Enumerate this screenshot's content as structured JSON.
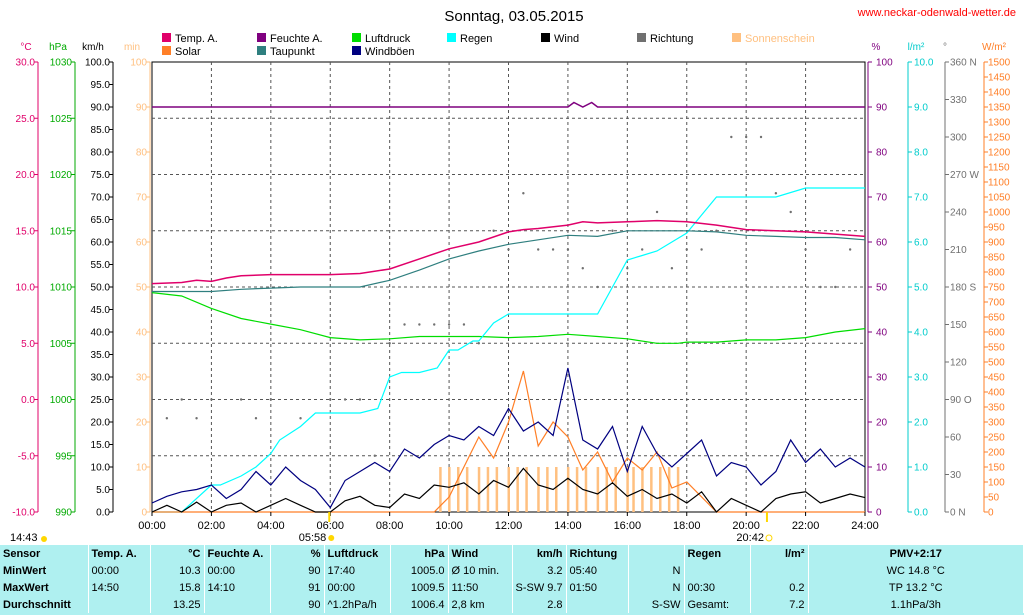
{
  "title": "Sonntag, 03.05.2015",
  "website": "www.neckar-odenwald-wetter.de",
  "legend": [
    {
      "label": "Temp. A.",
      "color": "#e0006a"
    },
    {
      "label": "Solar",
      "color": "#ff7f27"
    },
    {
      "label": "Feuchte A.",
      "color": "#7f007f"
    },
    {
      "label": "Taupunkt",
      "color": "#2f7f7f"
    },
    {
      "label": "Luftdruck",
      "color": "#00dd00"
    },
    {
      "label": "Windböen",
      "color": "#000080"
    },
    {
      "label": "Regen",
      "color": "#00ffff"
    },
    {
      "label": "Wind",
      "color": "#000000"
    },
    {
      "label": "Richtung",
      "color": "#707070"
    },
    {
      "label": "Sonnenschein",
      "color": "#ffc080"
    }
  ],
  "axes": {
    "temp": {
      "unit": "°C",
      "ticks": [
        "30.0",
        "25.0",
        "20.0",
        "15.0",
        "10.0",
        "5.0",
        "0.0",
        "-5.0",
        "-10.0"
      ],
      "color": "#e0006a"
    },
    "hpa": {
      "unit": "hPa",
      "ticks": [
        "1030",
        "1025",
        "1020",
        "1015",
        "1010",
        "1005",
        "1000",
        "995",
        "990"
      ],
      "color": "#00aa00"
    },
    "kmh": {
      "unit": "km/h",
      "ticks": [
        "100.0",
        "95.0",
        "90.0",
        "85.0",
        "80.0",
        "75.0",
        "70.0",
        "65.0",
        "60.0",
        "55.0",
        "50.0",
        "45.0",
        "40.0",
        "35.0",
        "30.0",
        "25.0",
        "20.0",
        "15.0",
        "10.0",
        "5.0",
        "0.0"
      ],
      "color": "#000000"
    },
    "min": {
      "unit": "min",
      "ticks": [
        "100",
        "90",
        "80",
        "70",
        "60",
        "50",
        "40",
        "30",
        "20",
        "10",
        "0"
      ],
      "color": "#ffc080"
    },
    "pct": {
      "unit": "%",
      "ticks": [
        "100",
        "90",
        "80",
        "70",
        "60",
        "50",
        "40",
        "30",
        "20",
        "10",
        "0"
      ],
      "color": "#7f007f"
    },
    "rain": {
      "unit": "l/m²",
      "ticks": [
        "10.0",
        "9.0",
        "8.0",
        "7.0",
        "6.0",
        "5.0",
        "4.0",
        "3.0",
        "2.0",
        "1.0",
        "0.0"
      ],
      "color": "#00cccc"
    },
    "dir": {
      "unit": "°",
      "ticks": [
        "360 N",
        "330",
        "300",
        "270 W",
        "240",
        "210",
        "180 S",
        "150",
        "120",
        "90 O",
        "60",
        "30",
        "0 N"
      ],
      "color": "#707070"
    },
    "solar": {
      "unit": "W/m²",
      "ticks": [
        "1500",
        "1450",
        "1400",
        "1350",
        "1300",
        "1250",
        "1200",
        "1150",
        "1100",
        "1050",
        "1000",
        "950",
        "900",
        "850",
        "800",
        "750",
        "700",
        "650",
        "600",
        "550",
        "500",
        "450",
        "400",
        "350",
        "300",
        "250",
        "200",
        "150",
        "100",
        "50",
        "0"
      ],
      "color": "#ff7f27"
    }
  },
  "x_ticks": [
    "00:00",
    "02:00",
    "04:00",
    "06:00",
    "08:00",
    "10:00",
    "12:00",
    "14:00",
    "16:00",
    "18:00",
    "20:00",
    "22:00",
    "24:00"
  ],
  "markers": {
    "left_time": "14:43",
    "sunrise": "05:58",
    "sunset": "20:42"
  },
  "chart_data": {
    "type": "line",
    "x_unit": "hours",
    "xlim": [
      0,
      24
    ],
    "series": [
      {
        "name": "Temp. A.",
        "unit": "°C",
        "x": [
          0,
          1,
          1.5,
          2,
          2.5,
          3,
          4,
          5,
          6,
          7,
          8,
          9,
          10,
          11,
          12,
          12.5,
          13,
          14,
          14.5,
          15,
          16,
          17,
          18,
          19,
          20,
          21,
          22,
          23,
          24
        ],
        "values": [
          10.3,
          10.4,
          10.6,
          10.5,
          10.8,
          11.0,
          11.1,
          11.1,
          11.1,
          11.2,
          11.6,
          12.5,
          13.4,
          14.0,
          14.9,
          15.1,
          15.2,
          15.5,
          15.8,
          15.7,
          15.8,
          15.9,
          15.8,
          15.5,
          15.1,
          15.0,
          14.9,
          14.7,
          14.5
        ]
      },
      {
        "name": "Feuchte A.",
        "unit": "%",
        "x": [
          0,
          13,
          14,
          14.2,
          14.5,
          14.8,
          15,
          15.3,
          16,
          20,
          24
        ],
        "values": [
          90,
          90,
          90,
          91,
          90,
          91,
          90,
          90,
          90,
          90,
          90
        ]
      },
      {
        "name": "Luftdruck",
        "unit": "hPa",
        "x": [
          0,
          1,
          2,
          3,
          4,
          5,
          6,
          7,
          8,
          9,
          10,
          11,
          12,
          13,
          14,
          15,
          16,
          17,
          17.7,
          18,
          19,
          20,
          21,
          22,
          23,
          24
        ],
        "values": [
          1009.5,
          1009.2,
          1008.1,
          1007.2,
          1006.7,
          1006.2,
          1005.5,
          1005.3,
          1005.4,
          1005.6,
          1005.6,
          1005.6,
          1005.5,
          1005.6,
          1005.8,
          1005.6,
          1005.4,
          1005.0,
          1005.0,
          1005.1,
          1005.1,
          1005.3,
          1005.3,
          1005.5,
          1006.0,
          1006.3
        ]
      },
      {
        "name": "Taupunkt",
        "unit": "°C",
        "x": [
          0,
          1,
          2,
          3,
          4,
          5,
          6,
          7,
          8,
          9,
          10,
          11,
          12,
          13,
          14,
          15,
          16,
          17,
          18,
          19,
          20,
          21,
          22,
          23,
          24
        ],
        "values": [
          9.6,
          9.6,
          9.6,
          9.8,
          9.9,
          10.0,
          10.0,
          10.0,
          10.6,
          11.5,
          12.5,
          13.2,
          13.8,
          14.2,
          14.6,
          14.5,
          15.0,
          15.0,
          15.0,
          14.9,
          14.6,
          14.5,
          14.4,
          14.4,
          14.2
        ]
      },
      {
        "name": "Regen",
        "unit": "l/m²",
        "x": [
          0,
          1,
          2,
          2.3,
          3,
          3.5,
          4,
          4.3,
          5,
          5.5,
          6,
          6.5,
          7,
          7.6,
          8,
          8.4,
          9,
          9.6,
          10,
          10.3,
          10.8,
          11,
          11.5,
          12,
          13,
          14,
          15,
          15.5,
          16,
          16.5,
          17,
          17.5,
          18,
          18.5,
          19,
          19.5,
          20,
          21,
          22,
          23,
          24
        ],
        "values": [
          0.0,
          0.0,
          0.6,
          0.6,
          0.8,
          1.0,
          1.3,
          1.6,
          1.9,
          2.2,
          2.2,
          2.2,
          2.2,
          2.3,
          3.0,
          3.1,
          3.1,
          3.2,
          3.6,
          3.6,
          3.8,
          3.8,
          4.2,
          4.4,
          4.4,
          4.4,
          4.4,
          5.0,
          5.6,
          5.7,
          5.8,
          6.0,
          6.2,
          6.6,
          7.0,
          7.0,
          7.0,
          7.0,
          7.2,
          7.2,
          7.2
        ]
      },
      {
        "name": "Wind",
        "unit": "km/h",
        "x": [
          0,
          0.5,
          1,
          1.5,
          2,
          2.5,
          3,
          3.5,
          4,
          4.5,
          5,
          5.5,
          6,
          6.5,
          7,
          7.5,
          8,
          8.5,
          9,
          9.5,
          10,
          10.5,
          11,
          11.5,
          12,
          12.5,
          13,
          13.5,
          14,
          14.5,
          15,
          15.5,
          16,
          16.5,
          17,
          17.5,
          18,
          18.5,
          19,
          19.5,
          20,
          20.5,
          21,
          21.5,
          22,
          22.5,
          23,
          23.5,
          24
        ],
        "values": [
          0,
          1.5,
          0,
          2.2,
          0,
          1.5,
          2,
          0,
          1.5,
          3,
          1.5,
          0,
          0,
          2.5,
          3.5,
          1.5,
          1,
          4,
          3,
          6,
          5.5,
          6.5,
          4,
          7,
          5.5,
          9.7,
          6,
          5,
          7.5,
          5,
          4,
          6.5,
          3.5,
          5,
          3,
          4,
          2,
          4.5,
          0,
          3,
          1.5,
          0,
          3,
          4,
          4.5,
          2,
          3,
          4,
          3.2
        ]
      },
      {
        "name": "Windböen",
        "unit": "km/h",
        "x": [
          0,
          0.5,
          1,
          1.5,
          2,
          2.5,
          3,
          3.5,
          4,
          4.5,
          5,
          5.5,
          6,
          6.5,
          7,
          7.5,
          8,
          8.5,
          9,
          9.5,
          10,
          10.5,
          11,
          11.5,
          12,
          12.5,
          13,
          13.5,
          14,
          14.5,
          15,
          15.5,
          16,
          16.5,
          17,
          17.5,
          18,
          18.5,
          19,
          19.5,
          20,
          20.5,
          21,
          21.5,
          22,
          22.5,
          23,
          23.5,
          24
        ],
        "values": [
          2,
          3.5,
          4.5,
          5,
          6,
          3,
          5,
          9,
          6,
          10,
          7,
          5,
          1,
          7,
          9,
          11,
          9,
          14,
          12,
          15,
          17,
          16,
          19,
          17,
          23,
          18,
          20,
          17,
          32,
          16,
          14,
          19,
          9,
          19,
          13,
          10,
          13,
          16,
          8,
          11,
          10,
          6,
          9,
          16,
          11,
          14,
          10,
          12,
          10
        ]
      },
      {
        "name": "Solar",
        "unit": "W/m²",
        "x": [
          0,
          9.5,
          10,
          10.5,
          11,
          11.5,
          12,
          12.5,
          13,
          13.5,
          14,
          14.5,
          15,
          15.5,
          16,
          16.5,
          17,
          17.5,
          18,
          19,
          24
        ],
        "values": [
          0,
          0,
          50,
          150,
          250,
          180,
          300,
          470,
          220,
          300,
          250,
          140,
          200,
          100,
          180,
          140,
          200,
          80,
          100,
          0,
          0
        ]
      },
      {
        "name": "Sonnenschein",
        "unit": "min",
        "x": [
          9.7,
          10,
          10.3,
          10.6,
          11,
          11.3,
          11.6,
          12,
          12.3,
          12.6,
          13,
          13.3,
          13.6,
          14,
          14.3,
          14.6,
          15,
          15.3,
          15.6,
          16,
          16.2,
          16.5,
          16.8,
          17.1,
          17.4,
          17.7
        ],
        "values": [
          10,
          10,
          10,
          10,
          10,
          10,
          10,
          10,
          10,
          10,
          10,
          10,
          10,
          10,
          10,
          10,
          10,
          10,
          10,
          10,
          10,
          10,
          10,
          10,
          10,
          10
        ]
      },
      {
        "name": "Richtung",
        "unit": "°",
        "x": [
          0.5,
          1,
          1.5,
          2,
          3,
          3.5,
          4,
          5,
          6,
          6.5,
          7,
          7.5,
          8,
          8.5,
          9,
          9.5,
          10,
          10.5,
          11,
          11.5,
          12,
          12.5,
          13,
          13.5,
          14,
          14.5,
          15,
          15.5,
          16,
          16.5,
          17,
          17.5,
          18,
          18.5,
          19,
          19.5,
          20,
          20.5,
          21,
          21.5,
          22,
          22.5,
          23,
          23.5
        ],
        "values": [
          75,
          90,
          75,
          90,
          90,
          75,
          90,
          75,
          90,
          90,
          90,
          45,
          135,
          150,
          150,
          150,
          150,
          150,
          135,
          225,
          210,
          255,
          210,
          210,
          210,
          195,
          180,
          225,
          195,
          210,
          240,
          195,
          210,
          210,
          225,
          300,
          300,
          300,
          255,
          240,
          210,
          180,
          180,
          210
        ]
      }
    ]
  },
  "stats": {
    "header": [
      "Sensor",
      "Temp. A.",
      "°C",
      "Feuchte A.",
      "%",
      "Luftdruck",
      "hPa",
      "Wind",
      "km/h",
      "Richtung",
      "",
      "Regen",
      "l/m²",
      "PMV+2:17"
    ],
    "rows": [
      {
        "label": "MinWert",
        "temp_time": "00:00",
        "temp_val": "10.3",
        "hum_time": "00:00",
        "hum_val": "90",
        "pres_time": "17:40",
        "pres_val": "1005.0",
        "wind_lbl": "Ø 10 min.",
        "wind_val": "3.2",
        "dir_time": "05:40",
        "dir_val": "N",
        "rain_time": "",
        "rain_val": "",
        "pmv": "WC 14.8 °C"
      },
      {
        "label": "MaxWert",
        "temp_time": "14:50",
        "temp_val": "15.8",
        "hum_time": "14:10",
        "hum_val": "91",
        "pres_time": "00:00",
        "pres_val": "1009.5",
        "wind_lbl": "11:50",
        "wind_val": "S-SW 9.7",
        "dir_time": "01:50",
        "dir_val": "N",
        "rain_time": "00:30",
        "rain_val": "0.2",
        "pmv": "TP 13.2 °C"
      },
      {
        "label": "Durchschnitt",
        "temp_time": "",
        "temp_val": "13.25",
        "hum_time": "",
        "hum_val": "90",
        "pres_time": "^1.2hPa/h",
        "pres_val": "1006.4",
        "wind_lbl": "2,8 km",
        "wind_val": "2.8",
        "dir_time": "",
        "dir_val": "S-SW",
        "rain_time": "Gesamt:",
        "rain_val": "7.2",
        "pmv": "1.1hPa/3h"
      }
    ]
  }
}
